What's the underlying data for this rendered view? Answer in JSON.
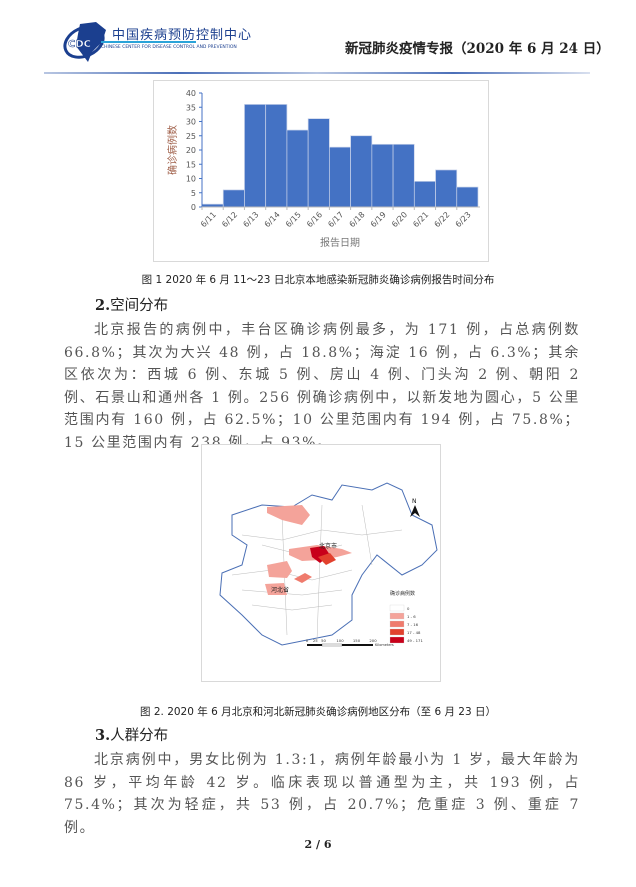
{
  "header": {
    "logo_cn": "中国疾病预防控制中心",
    "logo_en": "CHINESE CENTER FOR DISEASE CONTROL AND PREVENTION",
    "logo_badge": "CDC",
    "title": "新冠肺炎疫情专报（2020 年 6 月 24 日）"
  },
  "figure1": {
    "caption": "图 1  2020 年 6 月 11～23 日北京本地感染新冠肺炎确诊病例报告时间分布"
  },
  "chart_data": {
    "type": "bar",
    "categories": [
      "6/11",
      "6/12",
      "6/13",
      "6/14",
      "6/15",
      "6/16",
      "6/17",
      "6/18",
      "6/19",
      "6/20",
      "6/21",
      "6/22",
      "6/23"
    ],
    "values": [
      1,
      6,
      36,
      36,
      27,
      31,
      21,
      25,
      22,
      22,
      9,
      13,
      7
    ],
    "title": "",
    "xlabel": "报告日期",
    "ylabel": "确诊病例数",
    "ylim": [
      0,
      40
    ],
    "yticks": [
      0,
      5,
      10,
      15,
      20,
      25,
      30,
      35,
      40
    ],
    "grid": false,
    "bar_color": "#4472c4"
  },
  "section2": {
    "heading_num": "2.",
    "heading": "空间分布",
    "paragraph": "北京报告的病例中，丰台区确诊病例最多，为 171 例，占总病例数 66.8%；其次为大兴 48 例，占 18.8%；海淀 16 例，占 6.3%；其余区依次为：西城 6 例、东城 5 例、房山 4 例、门头沟 2 例、朝阳 2 例、石景山和通州各 1 例。256 例确诊病例中，以新发地为圆心，5 公里范围内有 160 例，占 62.5%；10 公里范围内有 194 例，占 75.8%；15 公里范围内有 238 例，占 93%。"
  },
  "figure2": {
    "caption": "图 2.  2020 年 6 月北京和河北新冠肺炎确诊病例地区分布（至 6 月 23 日）",
    "labels": {
      "beijing": "北京市",
      "hebei": "河北省",
      "north": "N"
    },
    "legend_title": "确诊病例数",
    "legend": [
      {
        "label": "0",
        "color": "#ffffff"
      },
      {
        "label": "1 - 6",
        "color": "#f4a39a"
      },
      {
        "label": "7 - 16",
        "color": "#ef7b6d"
      },
      {
        "label": "17 - 48",
        "color": "#e2412e"
      },
      {
        "label": "49 - 171",
        "color": "#c8001a"
      }
    ],
    "scale_ticks": [
      "0",
      "25",
      "50",
      "100",
      "150",
      "200"
    ],
    "scale_unit": "Kilometers"
  },
  "section3": {
    "heading_num": "3.",
    "heading": "人群分布",
    "paragraph": "北京病例中，男女比例为 1.3:1，病例年龄最小为 1 岁，最大年龄为 86 岁，平均年龄 42 岁。临床表现以普通型为主，共 193 例，占 75.4%；其次为轻症，共 53 例，占 20.7%；危重症 3 例、重症 7 例。"
  },
  "footer": {
    "page": "2 / 6"
  }
}
